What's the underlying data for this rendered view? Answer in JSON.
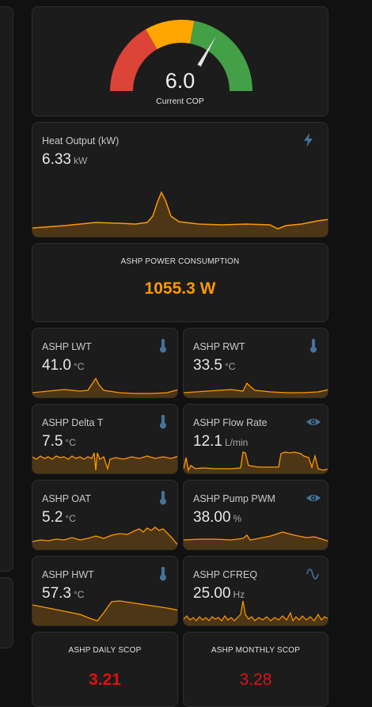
{
  "gauge": {
    "value": "6.0",
    "label": "Current COP"
  },
  "heat_output": {
    "name": "Heat Output (kW)",
    "value": "6.33",
    "unit": "kW",
    "icon": "lightning-icon"
  },
  "power": {
    "title": "ASHP POWER CONSUMPTION",
    "value": "1055.3 W",
    "color": "#ff9800"
  },
  "sensors": [
    {
      "name": "ASHP LWT",
      "value": "41.0",
      "unit": "°C",
      "icon": "thermometer-icon"
    },
    {
      "name": "ASHP RWT",
      "value": "33.5",
      "unit": "°C",
      "icon": "thermometer-icon"
    },
    {
      "name": "ASHP Delta T",
      "value": "7.5",
      "unit": "°C",
      "icon": "thermometer-icon"
    },
    {
      "name": "ASHP Flow Rate",
      "value": "12.1",
      "unit": "L/min",
      "icon": "eye-icon"
    },
    {
      "name": "ASHP OAT",
      "value": "5.2",
      "unit": "°C",
      "icon": "thermometer-icon"
    },
    {
      "name": "ASHP Pump PWM",
      "value": "38.00",
      "unit": "%",
      "icon": "eye-icon"
    },
    {
      "name": "ASHP HWT",
      "value": "57.3",
      "unit": "°C",
      "icon": "thermometer-icon"
    },
    {
      "name": "ASHP CFREQ",
      "value": "25.00",
      "unit": "Hz",
      "icon": "sine-wave-icon"
    }
  ],
  "daily_scop": {
    "title": "ASHP DAILY SCOP",
    "value": "3.21",
    "color": "#e01010"
  },
  "monthly_scop": {
    "title": "ASHP MONTHLY SCOP",
    "value": "3.28",
    "color": "#e01010"
  },
  "colors": {
    "accent": "#ff9800",
    "icon": "#44739e",
    "gauge_red": "#db4437",
    "gauge_yellow": "#ffa600",
    "gauge_green": "#43a047"
  }
}
